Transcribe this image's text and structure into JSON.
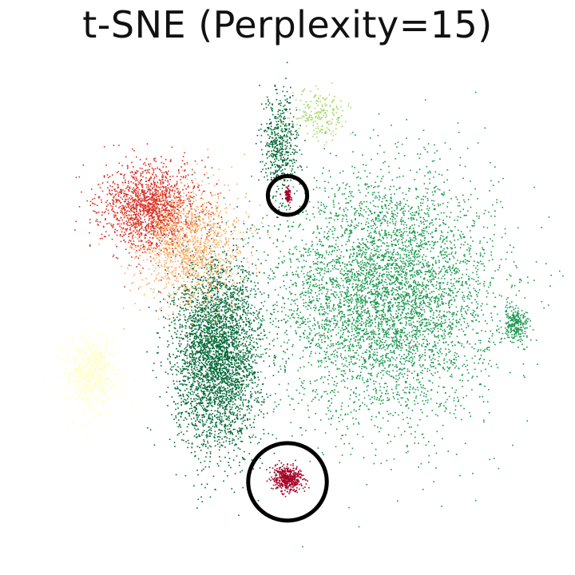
{
  "chart_data": {
    "type": "scatter",
    "title": "t-SNE (Perplexity=15)",
    "xlabel": "",
    "ylabel": "",
    "axes_visible": false,
    "grid": false,
    "legend": "none",
    "xlim": [
      -65,
      65
    ],
    "ylim": [
      -65,
      65
    ],
    "clusters": [
      {
        "name": "",
        "color": "#1a9850",
        "center": [
          25,
          5
        ],
        "spread": [
          25,
          28
        ],
        "count": 5200
      },
      {
        "name": "",
        "color": "#006837",
        "center": [
          -18,
          -10
        ],
        "spread": [
          10,
          22
        ],
        "count": 3600
      },
      {
        "name": "",
        "color": "#006837",
        "center": [
          -2,
          44
        ],
        "spread": [
          4,
          12
        ],
        "count": 500
      },
      {
        "name": "",
        "color": "#d73027",
        "center": [
          -35,
          28
        ],
        "spread": [
          11,
          10
        ],
        "count": 1600
      },
      {
        "name": "",
        "color": "#fdae61",
        "center": [
          -25,
          18
        ],
        "spread": [
          12,
          14
        ],
        "count": 1300
      },
      {
        "name": "",
        "color": "#ffffbf",
        "center": [
          -50,
          -15
        ],
        "spread": [
          6,
          9
        ],
        "count": 700
      },
      {
        "name": "",
        "color": "#a6d96a",
        "center": [
          8,
          52
        ],
        "spread": [
          6,
          6
        ],
        "count": 200
      },
      {
        "name": "",
        "color": "#1a9850",
        "center": [
          58,
          -2
        ],
        "spread": [
          3,
          4
        ],
        "count": 250
      },
      {
        "name": "",
        "color": "#a50026",
        "center": [
          0,
          -42
        ],
        "spread": [
          3.5,
          3
        ],
        "count": 450
      },
      {
        "name": "",
        "color": "#a50026",
        "center": [
          0,
          31
        ],
        "spread": [
          1,
          2
        ],
        "count": 80
      }
    ],
    "annotations": [
      {
        "type": "circle",
        "center": [
          0,
          31
        ],
        "radius_data": 5
      },
      {
        "type": "circle",
        "center": [
          0,
          -43
        ],
        "radius_data": 10
      }
    ]
  }
}
